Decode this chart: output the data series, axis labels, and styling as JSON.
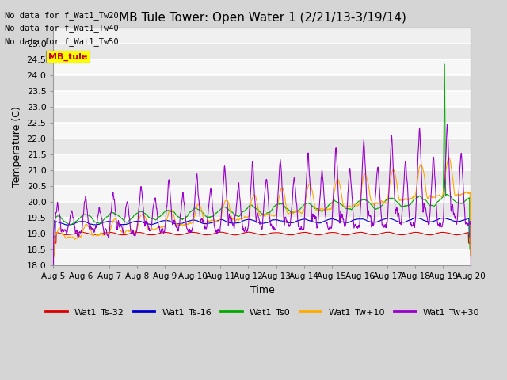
{
  "title": "MB Tule Tower: Open Water 1 (2/21/13-3/19/14)",
  "xlabel": "Time",
  "ylabel": "Temperature (C)",
  "ylim": [
    18.0,
    25.5
  ],
  "yticks": [
    18.0,
    18.5,
    19.0,
    19.5,
    20.0,
    20.5,
    21.0,
    21.5,
    22.0,
    22.5,
    23.0,
    23.5,
    24.0,
    24.5,
    25.0
  ],
  "no_data_text": [
    "No data for f_Wat1_Tw20",
    "No data for f_Wat1_Tw40",
    "No data for f_Wat1_Tw50"
  ],
  "legend_box_text": "MB_tule",
  "legend_box_color": "#ffff00",
  "legend_box_text_color": "#cc0000",
  "series": {
    "Wat1_Ts-32": {
      "color": "#dd0000",
      "lw": 0.8
    },
    "Wat1_Ts-16": {
      "color": "#0000cc",
      "lw": 0.8
    },
    "Wat1_Ts0": {
      "color": "#00aa00",
      "lw": 0.8
    },
    "Wat1_Tw+10": {
      "color": "#ffaa00",
      "lw": 0.8
    },
    "Wat1_Tw+30": {
      "color": "#9900cc",
      "lw": 0.8
    }
  },
  "xtick_labels": [
    "Aug 5",
    "Aug 6",
    "Aug 7",
    "Aug 8",
    "Aug 9",
    "Aug 10",
    "Aug 11",
    "Aug 12",
    "Aug 13",
    "Aug 14",
    "Aug 15",
    "Aug 16",
    "Aug 17",
    "Aug 18",
    "Aug 19",
    "Aug 20"
  ],
  "figsize": [
    6.4,
    4.8
  ],
  "dpi": 100
}
